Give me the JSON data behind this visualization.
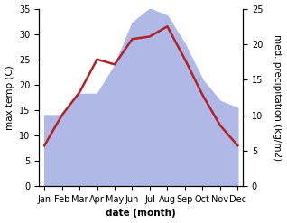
{
  "months": [
    "Jan",
    "Feb",
    "Mar",
    "Apr",
    "May",
    "Jun",
    "Jul",
    "Aug",
    "Sep",
    "Oct",
    "Nov",
    "Dec"
  ],
  "temperature": [
    8.0,
    14.0,
    18.5,
    25.0,
    24.0,
    29.0,
    29.5,
    31.5,
    25.0,
    18.0,
    12.0,
    8.0
  ],
  "precipitation": [
    10.0,
    10.0,
    13.0,
    13.0,
    17.0,
    23.0,
    25.0,
    24.0,
    20.0,
    15.0,
    12.0,
    11.0
  ],
  "temp_color": "#b22222",
  "precip_color": "#b0b8e8",
  "temp_ylim": [
    0,
    35
  ],
  "precip_ylim": [
    0,
    25
  ],
  "precip_ylim_scaled": [
    0,
    35
  ],
  "xlabel": "date (month)",
  "ylabel_left": "max temp (C)",
  "ylabel_right": "med. precipitation (kg/m2)",
  "bg_color": "#ffffff",
  "label_fontsize": 7.5,
  "tick_fontsize": 7,
  "linewidth": 1.8
}
